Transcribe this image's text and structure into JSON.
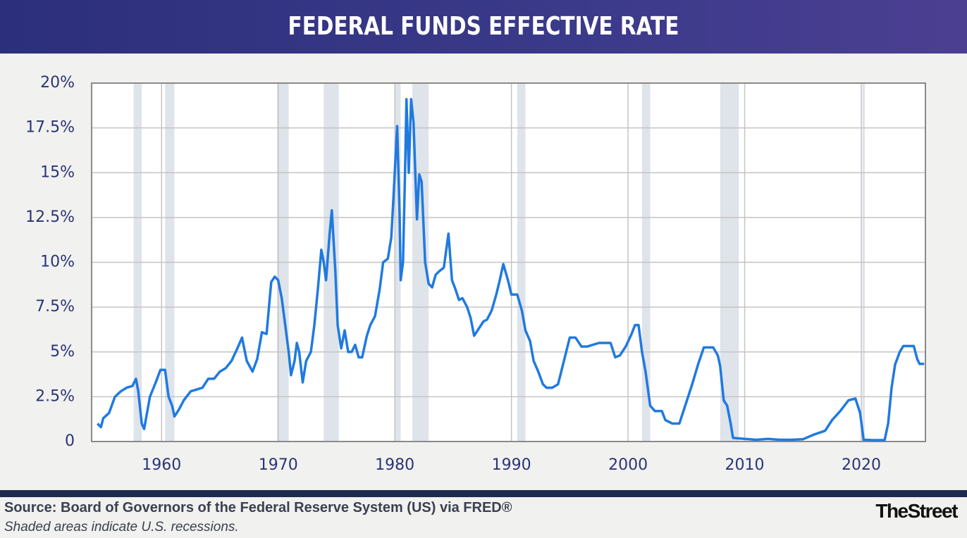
{
  "chart_data": {
    "type": "line",
    "title": "FEDERAL FUNDS EFFECTIVE RATE",
    "source": "Source: Board of Governors of the Federal Reserve System (US) via FRED®",
    "note": "Shaded areas indicate U.S. recessions.",
    "brand": "TheStreet",
    "color": "#1f7ae0",
    "grid": true,
    "xlim": [
      1954,
      2025.5
    ],
    "xticks": [
      1960,
      1970,
      1980,
      1990,
      2000,
      2010,
      2020
    ],
    "ylim": [
      0,
      20
    ],
    "yticks": [
      0,
      {
        "value": 2.5,
        "label": "2.5%"
      },
      {
        "value": 5,
        "label": "5%"
      },
      {
        "value": 7.5,
        "label": "7.5%"
      },
      {
        "value": 10,
        "label": "10%"
      },
      {
        "value": 12.5,
        "label": "12.5%"
      },
      {
        "value": 15,
        "label": "15%"
      },
      {
        "value": 17.5,
        "label": "17.5%"
      },
      {
        "value": 20,
        "label": "20%"
      }
    ],
    "recessions": [
      [
        1957.6,
        1958.3
      ],
      [
        1960.3,
        1961.1
      ],
      [
        1969.9,
        1970.9
      ],
      [
        1973.9,
        1975.2
      ],
      [
        1980.0,
        1980.5
      ],
      [
        1981.5,
        1982.9
      ],
      [
        1990.5,
        1991.2
      ],
      [
        2001.2,
        2001.9
      ],
      [
        2007.9,
        2009.5
      ],
      [
        2020.1,
        2020.3
      ]
    ],
    "x": [
      1954.5,
      1954.8,
      1955.0,
      1955.5,
      1956.0,
      1956.5,
      1957.0,
      1957.5,
      1957.8,
      1958.0,
      1958.3,
      1958.5,
      1959.0,
      1959.5,
      1959.9,
      1960.3,
      1960.6,
      1960.9,
      1961.1,
      1961.5,
      1961.9,
      1962.5,
      1963.0,
      1963.5,
      1964.0,
      1964.5,
      1965.0,
      1965.5,
      1966.0,
      1966.5,
      1966.9,
      1967.3,
      1967.8,
      1968.2,
      1968.6,
      1969.0,
      1969.4,
      1969.7,
      1970.0,
      1970.3,
      1970.6,
      1970.9,
      1971.1,
      1971.4,
      1971.6,
      1971.8,
      1972.1,
      1972.4,
      1972.8,
      1973.1,
      1973.4,
      1973.7,
      1973.9,
      1974.1,
      1974.4,
      1974.6,
      1974.9,
      1975.1,
      1975.4,
      1975.7,
      1976.0,
      1976.3,
      1976.6,
      1976.9,
      1977.2,
      1977.6,
      1977.9,
      1978.3,
      1978.7,
      1979.0,
      1979.4,
      1979.7,
      1979.9,
      1980.2,
      1980.4,
      1980.5,
      1980.7,
      1980.9,
      1981.0,
      1981.2,
      1981.4,
      1981.6,
      1981.9,
      1982.1,
      1982.3,
      1982.6,
      1982.9,
      1983.2,
      1983.5,
      1983.8,
      1984.2,
      1984.6,
      1984.9,
      1985.2,
      1985.5,
      1985.8,
      1986.2,
      1986.5,
      1986.8,
      1987.2,
      1987.6,
      1987.9,
      1988.3,
      1988.7,
      1989.0,
      1989.3,
      1989.7,
      1990.0,
      1990.5,
      1990.9,
      1991.2,
      1991.6,
      1991.9,
      1992.3,
      1992.7,
      1993.0,
      1993.5,
      1994.0,
      1994.5,
      1995.0,
      1995.5,
      1996.0,
      1996.5,
      1997.0,
      1997.5,
      1998.0,
      1998.5,
      1998.9,
      1999.3,
      1999.8,
      2000.3,
      2000.6,
      2000.9,
      2001.2,
      2001.5,
      2001.9,
      2002.3,
      2002.9,
      2003.2,
      2003.8,
      2004.4,
      2004.9,
      2005.5,
      2006.0,
      2006.5,
      2007.3,
      2007.7,
      2007.9,
      2008.2,
      2008.5,
      2008.8,
      2009.0,
      2010.0,
      2011.0,
      2012.0,
      2013.0,
      2014.0,
      2015.0,
      2016.0,
      2016.9,
      2017.5,
      2018.2,
      2018.9,
      2019.5,
      2019.9,
      2020.2,
      2021.0,
      2022.0,
      2022.3,
      2022.6,
      2022.9,
      2023.3,
      2023.6,
      2024.5,
      2024.8,
      2025.0,
      2025.4
    ],
    "values": [
      1.0,
      0.8,
      1.3,
      1.6,
      2.5,
      2.8,
      3.0,
      3.1,
      3.5,
      2.8,
      1.0,
      0.7,
      2.5,
      3.3,
      4.0,
      4.0,
      2.5,
      2.0,
      1.4,
      1.8,
      2.3,
      2.8,
      2.9,
      3.0,
      3.5,
      3.5,
      3.9,
      4.1,
      4.5,
      5.2,
      5.8,
      4.5,
      3.9,
      4.6,
      6.1,
      6.0,
      8.9,
      9.2,
      9.0,
      8.0,
      6.5,
      5.0,
      3.7,
      4.5,
      5.5,
      5.0,
      3.3,
      4.5,
      5.0,
      6.5,
      8.5,
      10.7,
      10.0,
      9.0,
      11.5,
      12.9,
      9.5,
      6.5,
      5.2,
      6.2,
      5.0,
      5.0,
      5.4,
      4.7,
      4.7,
      5.9,
      6.5,
      7.0,
      8.5,
      10.0,
      10.2,
      11.4,
      13.8,
      17.6,
      13.0,
      9.0,
      10.0,
      15.8,
      19.1,
      15.0,
      19.1,
      17.8,
      12.4,
      14.9,
      14.5,
      10.0,
      8.8,
      8.6,
      9.3,
      9.5,
      9.7,
      11.6,
      9.0,
      8.5,
      7.9,
      8.0,
      7.5,
      6.9,
      5.9,
      6.3,
      6.7,
      6.8,
      7.3,
      8.2,
      9.0,
      9.9,
      9.0,
      8.2,
      8.2,
      7.3,
      6.2,
      5.6,
      4.5,
      3.9,
      3.2,
      3.0,
      3.0,
      3.2,
      4.5,
      5.8,
      5.8,
      5.3,
      5.3,
      5.4,
      5.5,
      5.5,
      5.5,
      4.7,
      4.8,
      5.3,
      6.0,
      6.5,
      6.5,
      5.0,
      3.9,
      2.0,
      1.7,
      1.7,
      1.2,
      1.0,
      1.0,
      2.0,
      3.2,
      4.3,
      5.25,
      5.25,
      4.8,
      4.2,
      2.3,
      2.0,
      1.0,
      0.2,
      0.15,
      0.1,
      0.15,
      0.1,
      0.1,
      0.13,
      0.4,
      0.6,
      1.2,
      1.7,
      2.3,
      2.4,
      1.6,
      0.1,
      0.08,
      0.08,
      1.0,
      3.0,
      4.3,
      5.0,
      5.33,
      5.33,
      4.6,
      4.33,
      4.33
    ]
  }
}
